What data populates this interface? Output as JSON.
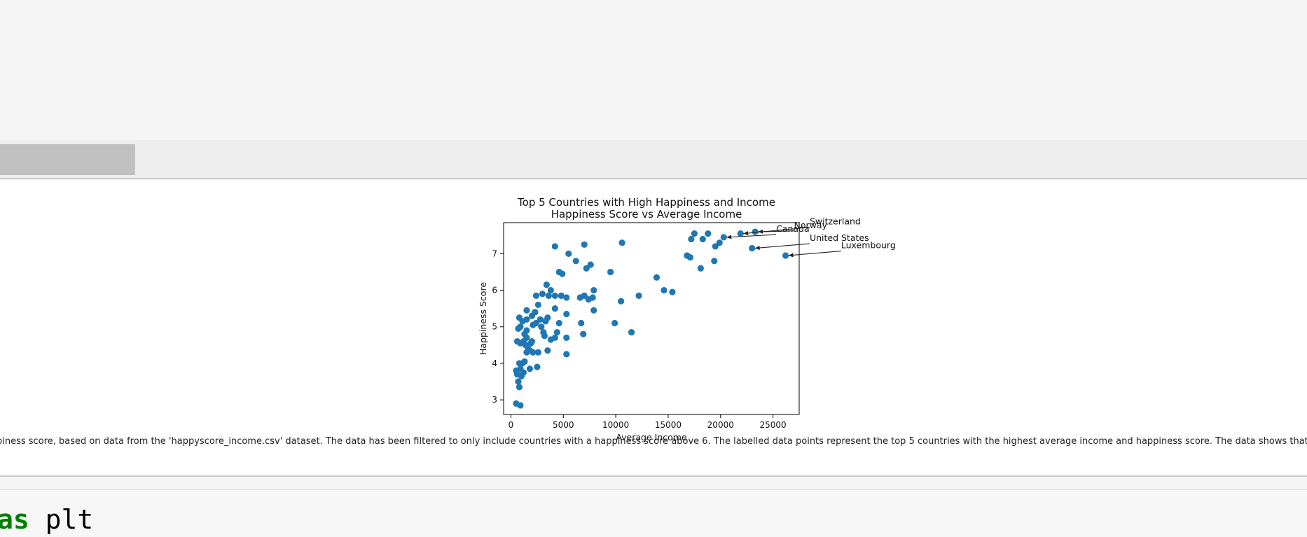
{
  "caption": "piness score, based on data from the 'happyscore_income.csv' dataset. The data has been filtered to only include countries with a happiness score above 6. The labelled data points represent the top 5 countries with the highest average income and happiness score. The data shows that these co",
  "code": {
    "keyword": "as",
    "rest": " plt"
  },
  "chart_data": {
    "type": "scatter",
    "title": "Top 5 Countries with High Happiness and Income",
    "subtitle": "Happiness Score vs Average Income",
    "xlabel": "Average Income",
    "ylabel": "Happiness Score",
    "xlim": [
      -700,
      27500
    ],
    "ylim": [
      2.6,
      7.85
    ],
    "xticks": [
      0,
      5000,
      10000,
      15000,
      20000,
      25000
    ],
    "yticks": [
      3,
      4,
      5,
      6,
      7
    ],
    "grid": false,
    "color": "#1f77b4",
    "points": [
      [
        500,
        2.9
      ],
      [
        900,
        2.85
      ],
      [
        800,
        3.35
      ],
      [
        700,
        3.5
      ],
      [
        1000,
        3.65
      ],
      [
        600,
        3.7
      ],
      [
        500,
        3.8
      ],
      [
        900,
        3.85
      ],
      [
        1200,
        3.75
      ],
      [
        800,
        4.0
      ],
      [
        1100,
        4.0
      ],
      [
        1300,
        4.05
      ],
      [
        1800,
        3.85
      ],
      [
        2500,
        3.9
      ],
      [
        1500,
        4.3
      ],
      [
        1800,
        4.35
      ],
      [
        2100,
        4.3
      ],
      [
        2600,
        4.3
      ],
      [
        3500,
        4.35
      ],
      [
        1400,
        4.5
      ],
      [
        1600,
        4.45
      ],
      [
        1900,
        4.55
      ],
      [
        600,
        4.6
      ],
      [
        900,
        4.55
      ],
      [
        1200,
        4.6
      ],
      [
        1500,
        4.7
      ],
      [
        2000,
        4.6
      ],
      [
        1300,
        4.8
      ],
      [
        1500,
        4.9
      ],
      [
        3200,
        4.75
      ],
      [
        3800,
        4.65
      ],
      [
        4200,
        4.7
      ],
      [
        5300,
        4.7
      ],
      [
        5300,
        4.25
      ],
      [
        6900,
        4.8
      ],
      [
        2900,
        5.0
      ],
      [
        3100,
        4.85
      ],
      [
        4400,
        4.85
      ],
      [
        700,
        4.95
      ],
      [
        900,
        5.0
      ],
      [
        1100,
        5.15
      ],
      [
        1500,
        5.2
      ],
      [
        2100,
        5.05
      ],
      [
        2400,
        5.1
      ],
      [
        2800,
        5.2
      ],
      [
        3300,
        5.15
      ],
      [
        3500,
        5.25
      ],
      [
        4600,
        5.1
      ],
      [
        800,
        5.25
      ],
      [
        1500,
        5.45
      ],
      [
        2000,
        5.3
      ],
      [
        2300,
        5.4
      ],
      [
        5300,
        5.35
      ],
      [
        6700,
        5.1
      ],
      [
        9900,
        5.1
      ],
      [
        11500,
        4.85
      ],
      [
        10500,
        5.7
      ],
      [
        7900,
        5.45
      ],
      [
        2600,
        5.6
      ],
      [
        4200,
        5.5
      ],
      [
        2400,
        5.85
      ],
      [
        3000,
        5.9
      ],
      [
        3600,
        5.85
      ],
      [
        3800,
        6.0
      ],
      [
        4200,
        5.85
      ],
      [
        4800,
        5.85
      ],
      [
        5300,
        5.8
      ],
      [
        6600,
        5.8
      ],
      [
        7000,
        5.85
      ],
      [
        7400,
        5.75
      ],
      [
        7800,
        5.8
      ],
      [
        7900,
        6.0
      ],
      [
        12200,
        5.85
      ],
      [
        14600,
        6.0
      ],
      [
        15400,
        5.95
      ],
      [
        13900,
        6.35
      ],
      [
        3400,
        6.15
      ],
      [
        4600,
        6.5
      ],
      [
        4900,
        6.45
      ],
      [
        6200,
        6.8
      ],
      [
        5500,
        7.0
      ],
      [
        7200,
        6.6
      ],
      [
        7600,
        6.7
      ],
      [
        9500,
        6.5
      ],
      [
        4200,
        7.2
      ],
      [
        7000,
        7.25
      ],
      [
        10600,
        7.3
      ],
      [
        16800,
        6.95
      ],
      [
        17100,
        6.9
      ],
      [
        18100,
        6.6
      ],
      [
        19400,
        6.8
      ],
      [
        17200,
        7.4
      ],
      [
        17500,
        7.55
      ],
      [
        18300,
        7.4
      ],
      [
        18800,
        7.55
      ],
      [
        19500,
        7.2
      ],
      [
        19900,
        7.3
      ],
      [
        20300,
        7.45
      ],
      [
        21900,
        7.55
      ],
      [
        23300,
        7.6
      ],
      [
        23000,
        7.15
      ],
      [
        26200,
        6.95
      ]
    ],
    "annotations": [
      {
        "label": "Switzerland",
        "point": [
          21900,
          7.55
        ],
        "text_at": [
          28500,
          7.8
        ]
      },
      {
        "label": "Norway",
        "point": [
          23300,
          7.6
        ],
        "text_at": [
          27000,
          7.7
        ]
      },
      {
        "label": "Canada",
        "point": [
          20300,
          7.45
        ],
        "text_at": [
          25300,
          7.6
        ]
      },
      {
        "label": "United States",
        "point": [
          23000,
          7.15
        ],
        "text_at": [
          28500,
          7.35
        ]
      },
      {
        "label": "Luxembourg",
        "point": [
          26200,
          6.95
        ],
        "text_at": [
          31500,
          7.15
        ]
      }
    ]
  }
}
